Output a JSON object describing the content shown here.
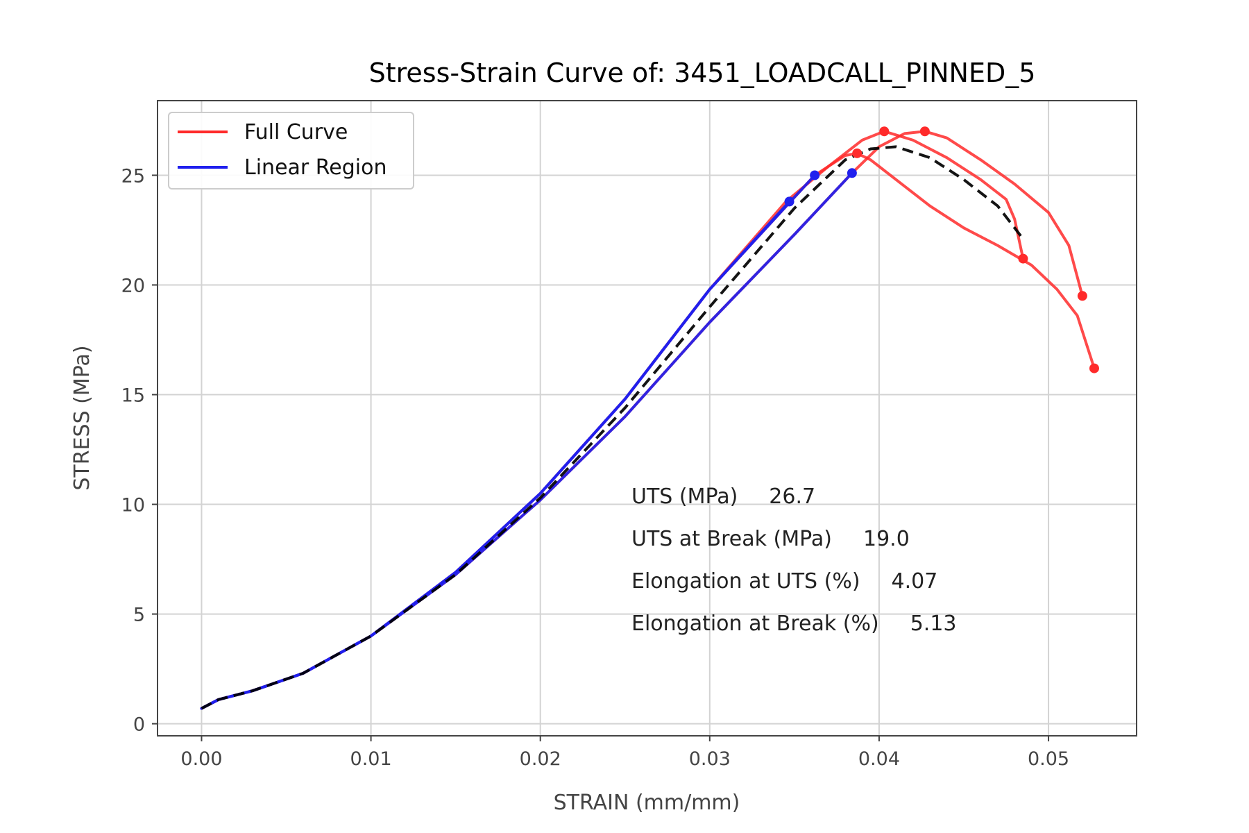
{
  "chart_data": {
    "type": "line",
    "title": "Stress-Strain Curve of: 3451_LOADCALL_PINNED_5",
    "xlabel": "STRAIN (mm/mm)",
    "ylabel": "STRESS (MPa)",
    "xlim": [
      -0.0026,
      0.0552
    ],
    "ylim": [
      -0.55,
      28.4
    ],
    "xticks": [
      0.0,
      0.01,
      0.02,
      0.03,
      0.04,
      0.05
    ],
    "xtick_labels": [
      "0.00",
      "0.01",
      "0.02",
      "0.03",
      "0.04",
      "0.05"
    ],
    "yticks": [
      0,
      5,
      10,
      15,
      20,
      25
    ],
    "ytick_labels": [
      "0",
      "5",
      "10",
      "15",
      "20",
      "25"
    ],
    "grid": true,
    "legend_position": "top-left",
    "legend": [
      {
        "label": "Full Curve",
        "color": "#ff2a2a"
      },
      {
        "label": "Linear Region",
        "color": "#2020ee"
      }
    ],
    "series": [
      {
        "kind": "full",
        "color": "#ff2a2a",
        "points": [
          [
            0.0,
            0.7
          ],
          [
            0.001,
            1.1
          ],
          [
            0.003,
            1.5
          ],
          [
            0.006,
            2.3
          ],
          [
            0.01,
            4.0
          ],
          [
            0.015,
            6.9
          ],
          [
            0.02,
            10.5
          ],
          [
            0.025,
            14.8
          ],
          [
            0.03,
            19.8
          ],
          [
            0.0345,
            23.8
          ],
          [
            0.037,
            25.4
          ],
          [
            0.039,
            26.6
          ],
          [
            0.0403,
            27.0
          ],
          [
            0.042,
            26.6
          ],
          [
            0.044,
            25.8
          ],
          [
            0.046,
            24.8
          ],
          [
            0.0475,
            23.9
          ],
          [
            0.048,
            23.0
          ],
          [
            0.0485,
            21.2
          ]
        ],
        "end_markers": [
          [
            0.0403,
            27.0
          ],
          [
            0.0485,
            21.2
          ]
        ]
      },
      {
        "kind": "full",
        "color": "#ff2a2a",
        "points": [
          [
            0.0,
            0.7
          ],
          [
            0.001,
            1.1
          ],
          [
            0.003,
            1.5
          ],
          [
            0.006,
            2.3
          ],
          [
            0.01,
            4.0
          ],
          [
            0.015,
            6.9
          ],
          [
            0.02,
            10.5
          ],
          [
            0.025,
            14.8
          ],
          [
            0.03,
            19.8
          ],
          [
            0.035,
            24.0
          ],
          [
            0.0362,
            25.0
          ],
          [
            0.038,
            25.9
          ],
          [
            0.0387,
            26.0
          ],
          [
            0.0395,
            25.7
          ],
          [
            0.041,
            24.8
          ],
          [
            0.043,
            23.6
          ],
          [
            0.045,
            22.6
          ],
          [
            0.047,
            21.8
          ],
          [
            0.049,
            20.9
          ],
          [
            0.0505,
            19.8
          ],
          [
            0.0517,
            18.6
          ],
          [
            0.0527,
            16.2
          ]
        ],
        "end_markers": [
          [
            0.0387,
            26.0
          ],
          [
            0.0527,
            16.2
          ]
        ]
      },
      {
        "kind": "full",
        "color": "#ff2a2a",
        "points": [
          [
            0.0,
            0.7
          ],
          [
            0.001,
            1.1
          ],
          [
            0.003,
            1.5
          ],
          [
            0.006,
            2.3
          ],
          [
            0.01,
            4.0
          ],
          [
            0.015,
            6.8
          ],
          [
            0.02,
            10.2
          ],
          [
            0.025,
            14.0
          ],
          [
            0.03,
            18.3
          ],
          [
            0.035,
            22.3
          ],
          [
            0.0384,
            25.1
          ],
          [
            0.04,
            26.3
          ],
          [
            0.0415,
            26.9
          ],
          [
            0.0427,
            27.0
          ],
          [
            0.044,
            26.7
          ],
          [
            0.046,
            25.7
          ],
          [
            0.048,
            24.6
          ],
          [
            0.05,
            23.3
          ],
          [
            0.0512,
            21.8
          ],
          [
            0.052,
            19.5
          ]
        ],
        "end_markers": [
          [
            0.0427,
            27.0
          ],
          [
            0.052,
            19.5
          ]
        ]
      },
      {
        "kind": "linear",
        "color": "#2020ee",
        "points": [
          [
            0.0,
            0.7
          ],
          [
            0.001,
            1.1
          ],
          [
            0.003,
            1.5
          ],
          [
            0.006,
            2.3
          ],
          [
            0.01,
            4.0
          ],
          [
            0.015,
            6.9
          ],
          [
            0.02,
            10.5
          ],
          [
            0.025,
            14.8
          ],
          [
            0.03,
            19.8
          ],
          [
            0.0347,
            23.8
          ]
        ],
        "end_markers": [
          [
            0.0347,
            23.8
          ]
        ]
      },
      {
        "kind": "linear",
        "color": "#2020ee",
        "points": [
          [
            0.0,
            0.7
          ],
          [
            0.001,
            1.1
          ],
          [
            0.003,
            1.5
          ],
          [
            0.006,
            2.3
          ],
          [
            0.01,
            4.0
          ],
          [
            0.015,
            6.9
          ],
          [
            0.02,
            10.5
          ],
          [
            0.025,
            14.8
          ],
          [
            0.03,
            19.8
          ],
          [
            0.035,
            24.0
          ],
          [
            0.0362,
            25.0
          ]
        ],
        "end_markers": [
          [
            0.0362,
            25.0
          ]
        ]
      },
      {
        "kind": "linear",
        "color": "#2020ee",
        "points": [
          [
            0.0,
            0.7
          ],
          [
            0.001,
            1.1
          ],
          [
            0.003,
            1.5
          ],
          [
            0.006,
            2.3
          ],
          [
            0.01,
            4.0
          ],
          [
            0.015,
            6.8
          ],
          [
            0.02,
            10.2
          ],
          [
            0.025,
            14.0
          ],
          [
            0.03,
            18.3
          ],
          [
            0.035,
            22.3
          ],
          [
            0.0384,
            25.1
          ]
        ],
        "end_markers": [
          [
            0.0384,
            25.1
          ]
        ]
      },
      {
        "kind": "average",
        "color": "#000000",
        "dashed": true,
        "points": [
          [
            0.0,
            0.7
          ],
          [
            0.001,
            1.1
          ],
          [
            0.003,
            1.5
          ],
          [
            0.006,
            2.3
          ],
          [
            0.01,
            4.0
          ],
          [
            0.015,
            6.8
          ],
          [
            0.02,
            10.3
          ],
          [
            0.025,
            14.4
          ],
          [
            0.03,
            19.0
          ],
          [
            0.035,
            23.5
          ],
          [
            0.038,
            25.7
          ],
          [
            0.0395,
            26.2
          ],
          [
            0.041,
            26.3
          ],
          [
            0.043,
            25.8
          ],
          [
            0.045,
            24.8
          ],
          [
            0.047,
            23.6
          ],
          [
            0.0485,
            22.1
          ]
        ],
        "end_markers": []
      }
    ],
    "annotations": [
      {
        "label": "UTS (MPa)",
        "value": "26.7"
      },
      {
        "label": "UTS at Break (MPa)",
        "value": "19.0"
      },
      {
        "label": "Elongation at UTS (%)",
        "value": "4.07"
      },
      {
        "label": "Elongation at Break (%)",
        "value": "5.13"
      }
    ]
  }
}
